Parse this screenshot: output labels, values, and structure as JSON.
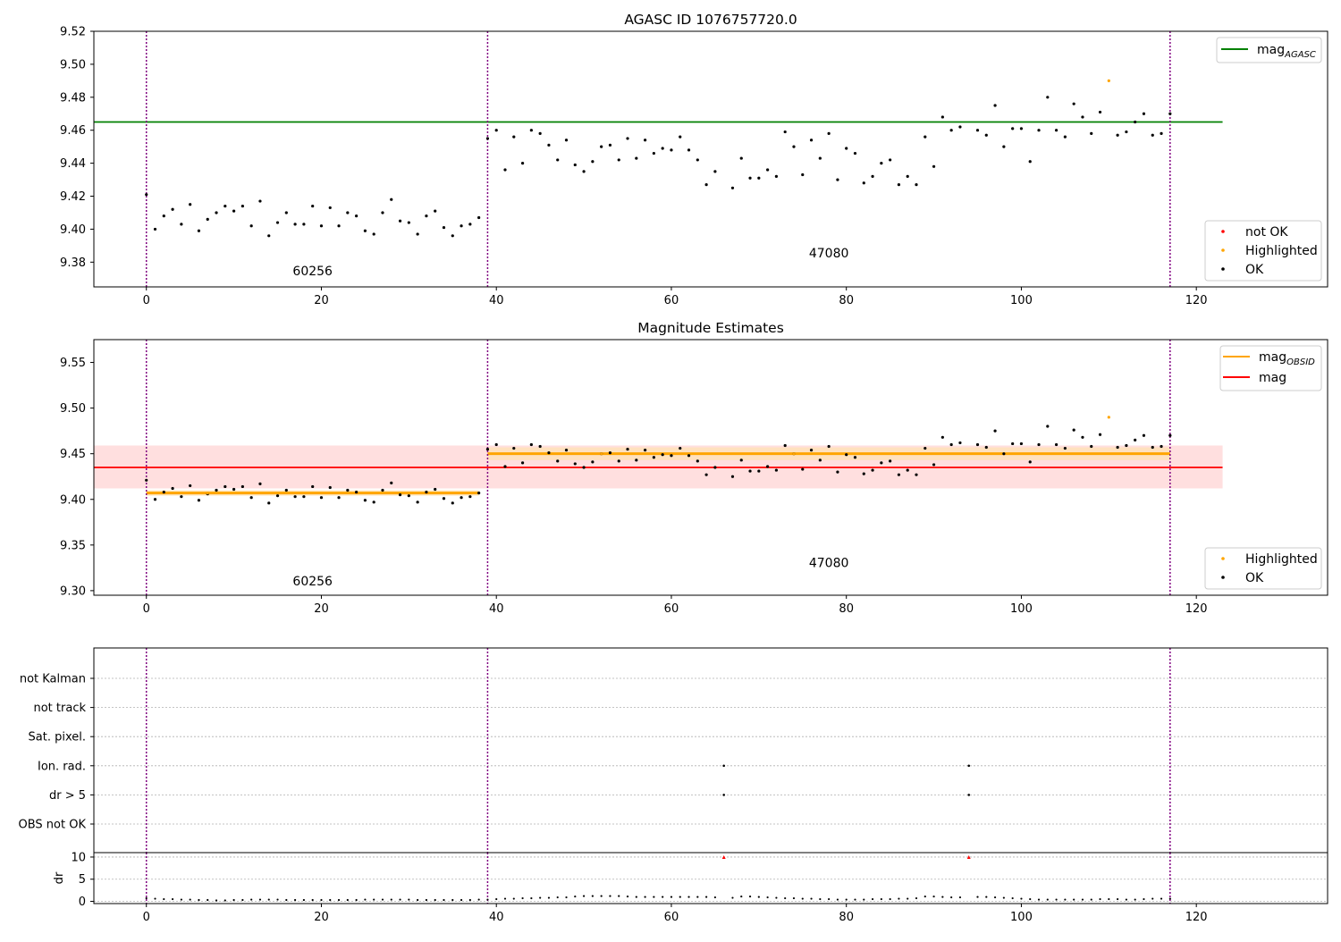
{
  "chart_data": [
    {
      "type": "scatter",
      "title": "AGASC ID 1076757720.0",
      "xlim": [
        -6,
        135
      ],
      "ylim": [
        9.365,
        9.52
      ],
      "xticks": [
        0,
        20,
        40,
        60,
        80,
        100,
        120
      ],
      "yticks": [
        9.38,
        9.4,
        9.42,
        9.44,
        9.46,
        9.48,
        9.5,
        9.52
      ],
      "ytick_labels": [
        "9.38",
        "9.40",
        "9.42",
        "9.44",
        "9.46",
        "9.48",
        "9.50",
        "9.52"
      ],
      "hlines": [
        {
          "name": "mag_AGASC",
          "y": 9.465,
          "x": [
            -6,
            123
          ],
          "color": "#008000"
        }
      ],
      "obsid_boundaries": [
        0,
        39,
        117
      ],
      "obsid_labels": [
        {
          "text": "60256",
          "x": 19,
          "y": 9.372
        },
        {
          "text": "47080",
          "x": 78,
          "y": 9.383
        }
      ],
      "legend_lines": [
        {
          "name": "mag",
          "subscript": "AGASC",
          "color": "#008000"
        }
      ],
      "legend_markers": [
        {
          "name": "not OK",
          "color": "#ff0000"
        },
        {
          "name": "Highlighted",
          "color": "#ffa500"
        },
        {
          "name": "OK",
          "color": "#000000"
        }
      ],
      "highlighted_points": [
        {
          "x": 110,
          "y": 9.49
        }
      ],
      "series_ok": [
        [
          0,
          9.421
        ],
        [
          1,
          9.4
        ],
        [
          2,
          9.408
        ],
        [
          3,
          9.412
        ],
        [
          4,
          9.403
        ],
        [
          5,
          9.415
        ],
        [
          6,
          9.399
        ],
        [
          7,
          9.406
        ],
        [
          8,
          9.41
        ],
        [
          9,
          9.414
        ],
        [
          10,
          9.411
        ],
        [
          11,
          9.414
        ],
        [
          12,
          9.402
        ],
        [
          13,
          9.417
        ],
        [
          14,
          9.396
        ],
        [
          15,
          9.404
        ],
        [
          16,
          9.41
        ],
        [
          17,
          9.403
        ],
        [
          18,
          9.403
        ],
        [
          19,
          9.414
        ],
        [
          20,
          9.402
        ],
        [
          21,
          9.413
        ],
        [
          22,
          9.402
        ],
        [
          23,
          9.41
        ],
        [
          24,
          9.408
        ],
        [
          25,
          9.399
        ],
        [
          26,
          9.397
        ],
        [
          27,
          9.41
        ],
        [
          28,
          9.418
        ],
        [
          29,
          9.405
        ],
        [
          30,
          9.404
        ],
        [
          31,
          9.397
        ],
        [
          32,
          9.408
        ],
        [
          33,
          9.411
        ],
        [
          34,
          9.401
        ],
        [
          35,
          9.396
        ],
        [
          36,
          9.402
        ],
        [
          37,
          9.403
        ],
        [
          38,
          9.407
        ],
        [
          39,
          9.455
        ],
        [
          40,
          9.46
        ],
        [
          41,
          9.436
        ],
        [
          42,
          9.456
        ],
        [
          43,
          9.44
        ],
        [
          44,
          9.46
        ],
        [
          45,
          9.458
        ],
        [
          46,
          9.451
        ],
        [
          47,
          9.442
        ],
        [
          48,
          9.454
        ],
        [
          49,
          9.439
        ],
        [
          50,
          9.435
        ],
        [
          51,
          9.441
        ],
        [
          52,
          9.45
        ],
        [
          53,
          9.451
        ],
        [
          54,
          9.442
        ],
        [
          55,
          9.455
        ],
        [
          56,
          9.443
        ],
        [
          57,
          9.454
        ],
        [
          58,
          9.446
        ],
        [
          59,
          9.449
        ],
        [
          60,
          9.448
        ],
        [
          61,
          9.456
        ],
        [
          62,
          9.448
        ],
        [
          63,
          9.442
        ],
        [
          64,
          9.427
        ],
        [
          65,
          9.435
        ],
        [
          67,
          9.425
        ],
        [
          68,
          9.443
        ],
        [
          69,
          9.431
        ],
        [
          70,
          9.431
        ],
        [
          71,
          9.436
        ],
        [
          72,
          9.432
        ],
        [
          73,
          9.459
        ],
        [
          74,
          9.45
        ],
        [
          75,
          9.433
        ],
        [
          76,
          9.454
        ],
        [
          77,
          9.443
        ],
        [
          78,
          9.458
        ],
        [
          79,
          9.43
        ],
        [
          80,
          9.449
        ],
        [
          81,
          9.446
        ],
        [
          82,
          9.428
        ],
        [
          83,
          9.432
        ],
        [
          84,
          9.44
        ],
        [
          85,
          9.442
        ],
        [
          86,
          9.427
        ],
        [
          87,
          9.432
        ],
        [
          88,
          9.427
        ],
        [
          89,
          9.456
        ],
        [
          90,
          9.438
        ],
        [
          91,
          9.468
        ],
        [
          92,
          9.46
        ],
        [
          93,
          9.462
        ],
        [
          95,
          9.46
        ],
        [
          96,
          9.457
        ],
        [
          97,
          9.475
        ],
        [
          98,
          9.45
        ],
        [
          99,
          9.461
        ],
        [
          100,
          9.461
        ],
        [
          101,
          9.441
        ],
        [
          102,
          9.46
        ],
        [
          103,
          9.48
        ],
        [
          104,
          9.46
        ],
        [
          105,
          9.456
        ],
        [
          106,
          9.476
        ],
        [
          107,
          9.468
        ],
        [
          108,
          9.458
        ],
        [
          109,
          9.471
        ],
        [
          111,
          9.457
        ],
        [
          112,
          9.459
        ],
        [
          113,
          9.465
        ],
        [
          114,
          9.47
        ],
        [
          115,
          9.457
        ],
        [
          116,
          9.458
        ],
        [
          117,
          9.47
        ]
      ]
    },
    {
      "type": "scatter",
      "title": "Magnitude Estimates",
      "xlim": [
        -6,
        135
      ],
      "ylim": [
        9.295,
        9.575
      ],
      "xticks": [
        0,
        20,
        40,
        60,
        80,
        100,
        120
      ],
      "yticks": [
        9.3,
        9.35,
        9.4,
        9.45,
        9.5,
        9.55
      ],
      "ytick_labels": [
        "9.30",
        "9.35",
        "9.40",
        "9.45",
        "9.50",
        "9.55"
      ],
      "mag_band": {
        "y": 9.435,
        "lo": 9.412,
        "hi": 9.459,
        "x": [
          -6,
          123
        ],
        "line_color": "#ff0000",
        "fill_color": "#ffdcdc"
      },
      "obsid_segments": [
        {
          "x": [
            0,
            38
          ],
          "y": 9.407,
          "lo": 9.404,
          "hi": 9.41,
          "line_color": "#ffa500",
          "fill_color": "#ffe2b3"
        },
        {
          "x": [
            39,
            117
          ],
          "y": 9.45,
          "lo": 9.443,
          "hi": 9.457,
          "line_color": "#ffa500",
          "fill_color": "#ffe2b3"
        }
      ],
      "obsid_boundaries": [
        0,
        39,
        117
      ],
      "obsid_labels": [
        {
          "text": "60256",
          "x": 19,
          "y": 9.306
        },
        {
          "text": "47080",
          "x": 78,
          "y": 9.326
        }
      ],
      "legend_lines": [
        {
          "name": "mag",
          "subscript": "OBSID",
          "color": "#ffa500"
        },
        {
          "name": "mag",
          "subscript": "",
          "color": "#ff0000"
        }
      ],
      "legend_markers": [
        {
          "name": "Highlighted",
          "color": "#ffa500"
        },
        {
          "name": "OK",
          "color": "#000000"
        }
      ],
      "highlighted_points": [
        {
          "x": 110,
          "y": 9.49
        },
        {
          "x": 7,
          "y": 9.407
        },
        {
          "x": 52,
          "y": 9.45
        },
        {
          "x": 74,
          "y": 9.45
        }
      ],
      "uses_series_of_panel": 0
    },
    {
      "type": "scatter",
      "title": "",
      "xlim": [
        -6,
        135
      ],
      "xticks": [
        0,
        20,
        40,
        60,
        80,
        100,
        120
      ],
      "flag_rows": [
        "not Kalman",
        "not track",
        "Sat. pixel.",
        "Ion. rad.",
        "dr > 5",
        "OBS not OK"
      ],
      "flag_points": [
        {
          "row": "Ion. rad.",
          "x": 66
        },
        {
          "row": "Ion. rad.",
          "x": 94
        },
        {
          "row": "dr > 5",
          "x": 66
        },
        {
          "row": "dr > 5",
          "x": 94
        }
      ],
      "obsid_boundaries": [
        0,
        39,
        117
      ],
      "dr": {
        "ylabel": "dr",
        "ylim": [
          -0.5,
          11
        ],
        "yticks": [
          0,
          5,
          10
        ],
        "ytick_labels": [
          "0",
          "5",
          "10"
        ],
        "clipped_points": [
          {
            "x": 66,
            "y": 10
          },
          {
            "x": 94,
            "y": 10
          }
        ],
        "values": [
          0.7,
          0.6,
          0.5,
          0.5,
          0.4,
          0.4,
          0.3,
          0.3,
          0.2,
          0.2,
          0.3,
          0.3,
          0.4,
          0.4,
          0.4,
          0.4,
          0.3,
          0.3,
          0.3,
          0.3,
          0.3,
          0.3,
          0.3,
          0.3,
          0.3,
          0.4,
          0.4,
          0.4,
          0.4,
          0.4,
          0.4,
          0.3,
          0.3,
          0.3,
          0.3,
          0.3,
          0.3,
          0.3,
          0.4,
          0.4,
          0.5,
          0.6,
          0.6,
          0.7,
          0.7,
          0.8,
          0.8,
          0.9,
          0.9,
          1.1,
          1.2,
          1.2,
          1.2,
          1.2,
          1.2,
          1.1,
          1.0,
          1.0,
          1.0,
          1.0,
          1.0,
          1.0,
          1.0,
          1.0,
          1.0,
          0.9,
          null,
          0.8,
          1.1,
          1.1,
          1.0,
          0.9,
          0.8,
          0.7,
          0.7,
          0.6,
          0.6,
          0.5,
          0.5,
          0.4,
          0.4,
          0.4,
          0.4,
          0.5,
          0.5,
          0.5,
          0.6,
          0.6,
          0.7,
          1.1,
          1.1,
          1.0,
          0.9,
          0.9,
          null,
          1.0,
          1.0,
          0.9,
          0.8,
          0.7,
          0.6,
          0.5,
          0.4,
          0.4,
          0.4,
          0.4,
          0.4,
          0.4,
          0.4,
          0.5,
          0.5,
          0.5,
          0.4,
          0.4,
          0.5,
          0.6,
          0.6,
          0.6
        ]
      }
    }
  ]
}
